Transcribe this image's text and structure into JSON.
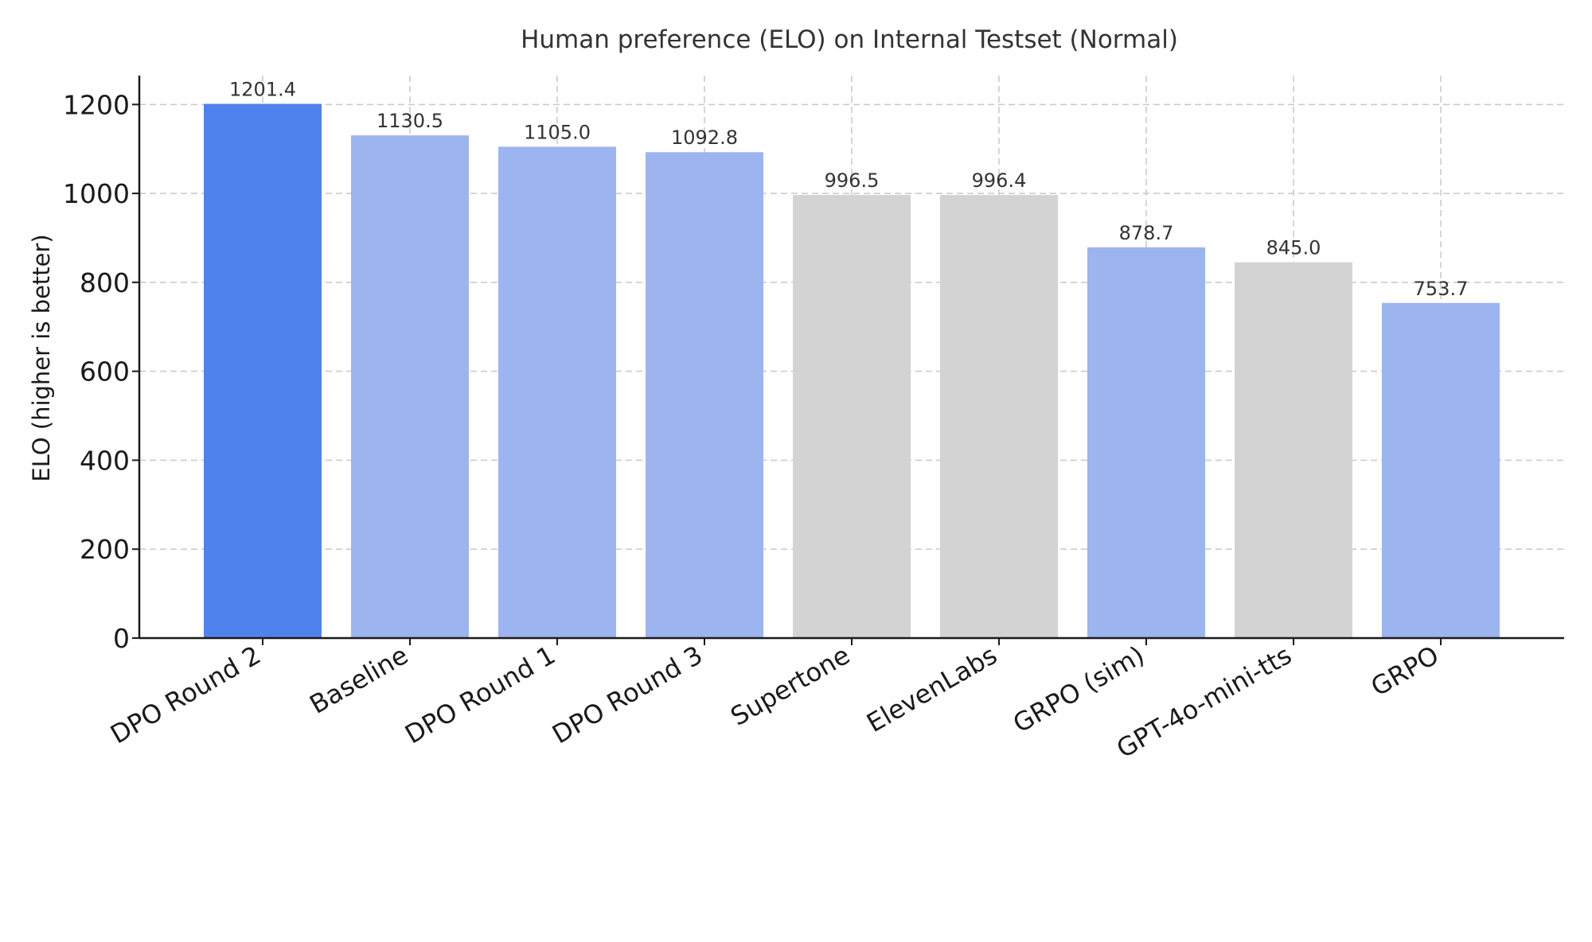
{
  "chart_data": {
    "type": "bar",
    "title": "Human preference (ELO) on Internal Testset (Normal)",
    "xlabel": "",
    "ylabel": "ELO (higher is better)",
    "ylim": [
      0,
      1265
    ],
    "yticks": [
      0,
      200,
      400,
      600,
      800,
      1000,
      1200
    ],
    "grid": true,
    "categories": [
      "DPO Round 2",
      "Baseline",
      "DPO Round 1",
      "DPO Round 3",
      "Supertone",
      "ElevenLabs",
      "GRPO (sim)",
      "GPT-4o-mini-tts",
      "GRPO"
    ],
    "values": [
      1201.4,
      1130.5,
      1105.0,
      1092.8,
      996.5,
      996.4,
      878.7,
      845.0,
      753.7
    ],
    "value_labels": [
      "1201.4",
      "1130.5",
      "1105.0",
      "1092.8",
      "996.5",
      "996.4",
      "878.7",
      "845.0",
      "753.7"
    ],
    "colors": [
      "#5082ee",
      "#9cb5f0",
      "#9cb5f0",
      "#9cb5f0",
      "#d3d3d3",
      "#d3d3d3",
      "#9cb5f0",
      "#d3d3d3",
      "#9cb5f0"
    ]
  }
}
